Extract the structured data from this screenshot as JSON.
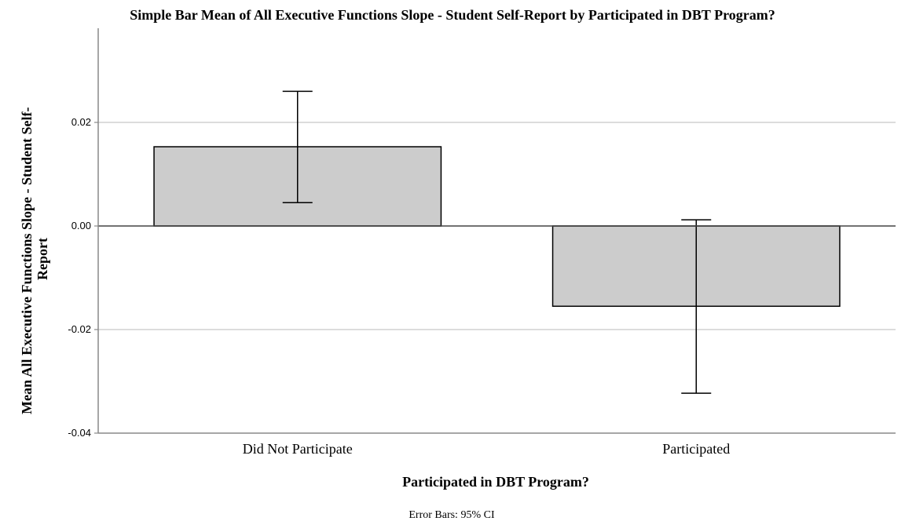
{
  "chart_data": {
    "type": "bar",
    "title": "Simple Bar Mean of All Executive Functions Slope - Student Self-Report by Participated in DBT Program?",
    "xlabel": "Participated in DBT Program?",
    "ylabel_lines": [
      "Mean All Executive Functions Slope - Student Self-",
      "Report"
    ],
    "categories": [
      "Did Not Participate",
      "Participated"
    ],
    "values": [
      0.0153,
      -0.0155
    ],
    "error_bars": {
      "label": "Error Bars: 95% CI",
      "lower": [
        0.0045,
        -0.0323
      ],
      "upper": [
        0.026,
        0.0012
      ]
    },
    "ylim": [
      -0.04,
      0.04
    ],
    "yticks": [
      0.02,
      0.0,
      -0.02,
      -0.04
    ],
    "ytick_labels": [
      "0.02",
      "0.00",
      "-0.02",
      "-0.04"
    ],
    "grid": true,
    "colors": {
      "bar_fill": "#cccccc",
      "bar_stroke": "#000000",
      "grid": "#c8c8c8",
      "axis": "#888888",
      "zero_line": "#444444"
    }
  }
}
